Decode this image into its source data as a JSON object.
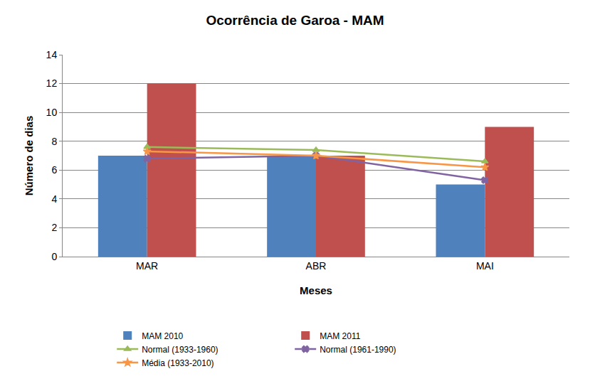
{
  "chart_data": {
    "type": "bar",
    "title": "Ocorrência de Garoa - MAM",
    "x_label": "Meses",
    "y_label": "Número de dias",
    "categories": [
      "MAR",
      "ABR",
      "MAI"
    ],
    "series": [
      {
        "name": "MAM 2010",
        "type": "bar",
        "color": "#4f81bd",
        "values": [
          7,
          7,
          5
        ]
      },
      {
        "name": "MAM 2011",
        "type": "bar",
        "color": "#c0504d",
        "values": [
          12,
          7,
          9
        ]
      },
      {
        "name": "Normal (1933-1960)",
        "type": "line",
        "color": "#9bbb59",
        "marker": "triangle-up",
        "values": [
          7.6,
          7.4,
          6.6
        ]
      },
      {
        "name": "Normal (1961-1990)",
        "type": "line",
        "color": "#8064a2",
        "marker": "x",
        "values": [
          6.8,
          7.0,
          5.3
        ]
      },
      {
        "name": "Média (1933-2010)",
        "type": "line",
        "color": "#f79646",
        "marker": "star",
        "values": [
          7.3,
          7.0,
          6.2
        ]
      }
    ],
    "ylim": [
      0,
      14
    ],
    "yticks": [
      0,
      2,
      4,
      6,
      8,
      10,
      12,
      14
    ],
    "grid": true,
    "legend": "bottom"
  }
}
